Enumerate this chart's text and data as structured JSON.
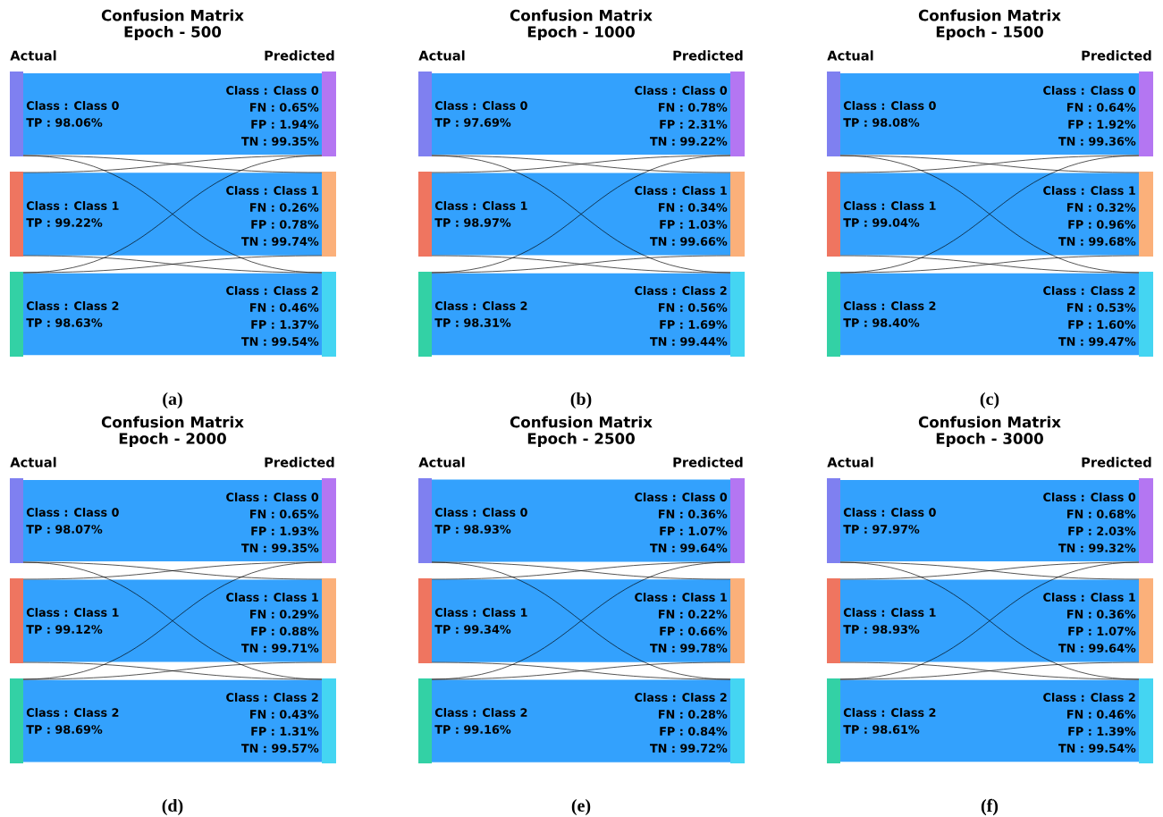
{
  "chart_data": [
    {
      "type": "other",
      "title": "Confusion Matrix",
      "subtitle": "Epoch - 500",
      "xlabel": "(a)",
      "categories": [
        "Class : Class 0",
        "Class : Class 1",
        "Class : Class 2"
      ],
      "colors": [
        "#33a1fd",
        "#33a1fd",
        "#33a1fd"
      ],
      "values": [
        98.06,
        99.22,
        98.63
      ],
      "value_labels": [
        "TP : 98.06%",
        "TP : 99.22%",
        "TP : 98.63%"
      ],
      "annotations": [
        "Actual",
        "Predicted",
        "FN : 0.65%",
        "FP : 1.94%",
        "TN : 99.35%",
        "FN : 0.26%",
        "FP : 0.78%",
        "TN : 99.74%",
        "FN : 0.46%",
        "FP : 1.37%",
        "TN : 99.54%"
      ]
    },
    {
      "type": "other",
      "title": "Confusion Matrix",
      "subtitle": "Epoch - 1000",
      "xlabel": "(b)",
      "categories": [
        "Class : Class 0",
        "Class : Class 1",
        "Class : Class 2"
      ],
      "colors": [
        "#33a1fd",
        "#33a1fd",
        "#33a1fd"
      ],
      "values": [
        97.69,
        98.97,
        98.31
      ],
      "value_labels": [
        "TP : 97.69%",
        "TP : 98.97%",
        "TP : 98.31%"
      ],
      "annotations": [
        "Actual",
        "Predicted",
        "FN : 0.78%",
        "FP : 2.31%",
        "TN : 99.22%",
        "FN : 0.34%",
        "FP : 1.03%",
        "TN : 99.66%",
        "FN : 0.56%",
        "FP : 1.69%",
        "TN : 99.44%"
      ]
    },
    {
      "type": "other",
      "title": "Confusion Matrix",
      "subtitle": "Epoch - 1500",
      "xlabel": "(c)",
      "categories": [
        "Class : Class 0",
        "Class : Class 1",
        "Class : Class 2"
      ],
      "colors": [
        "#33a1fd",
        "#33a1fd",
        "#33a1fd"
      ],
      "values": [
        98.08,
        99.04,
        98.4
      ],
      "value_labels": [
        "TP : 98.08%",
        "TP : 99.04%",
        "TP : 98.40%"
      ],
      "annotations": [
        "Actual",
        "Predicted",
        "FN : 0.64%",
        "FP : 1.92%",
        "TN : 99.36%",
        "FN : 0.32%",
        "FP : 0.96%",
        "TN : 99.68%",
        "FN : 0.53%",
        "FP : 1.60%",
        "TN : 99.47%"
      ]
    },
    {
      "type": "other",
      "title": "Confusion Matrix",
      "subtitle": "Epoch - 2000",
      "xlabel": "(d)",
      "categories": [
        "Class : Class 0",
        "Class : Class 1",
        "Class : Class 2"
      ],
      "colors": [
        "#33a1fd",
        "#33a1fd",
        "#33a1fd"
      ],
      "values": [
        98.07,
        99.12,
        98.69
      ],
      "value_labels": [
        "TP : 98.07%",
        "TP : 99.12%",
        "TP : 98.69%"
      ],
      "annotations": [
        "Actual",
        "Predicted",
        "FN : 0.65%",
        "FP : 1.93%",
        "TN : 99.35%",
        "FN : 0.29%",
        "FP : 0.88%",
        "TN : 99.71%",
        "FN : 0.43%",
        "FP : 1.31%",
        "TN : 99.57%"
      ]
    },
    {
      "type": "other",
      "title": "Confusion Matrix",
      "subtitle": "Epoch - 2500",
      "xlabel": "(e)",
      "categories": [
        "Class : Class 0",
        "Class : Class 1",
        "Class : Class 2"
      ],
      "colors": [
        "#33a1fd",
        "#33a1fd",
        "#33a1fd"
      ],
      "values": [
        98.93,
        99.34,
        99.16
      ],
      "value_labels": [
        "TP : 98.93%",
        "TP : 99.34%",
        "TP : 99.16%"
      ],
      "annotations": [
        "Actual",
        "Predicted",
        "FN : 0.36%",
        "FP : 1.07%",
        "TN : 99.64%",
        "FN : 0.22%",
        "FP : 0.66%",
        "TN : 99.78%",
        "FN : 0.28%",
        "FP : 0.84%",
        "TN : 99.72%"
      ]
    },
    {
      "type": "other",
      "title": "Confusion Matrix",
      "subtitle": "Epoch - 3000",
      "xlabel": "(f)",
      "categories": [
        "Class : Class 0",
        "Class : Class 1",
        "Class : Class 2"
      ],
      "colors": [
        "#33a1fd",
        "#33a1fd",
        "#33a1fd"
      ],
      "values": [
        97.97,
        98.93,
        98.61
      ],
      "value_labels": [
        "TP : 97.97%",
        "TP : 98.93%",
        "TP : 98.61%"
      ],
      "annotations": [
        "Actual",
        "Predicted",
        "FN : 0.68%",
        "FP : 2.03%",
        "TN : 99.32%",
        "FN : 0.36%",
        "FP : 1.07%",
        "TN : 99.64%",
        "FN : 0.46%",
        "FP : 1.39%",
        "TN : 99.54%"
      ]
    }
  ]
}
